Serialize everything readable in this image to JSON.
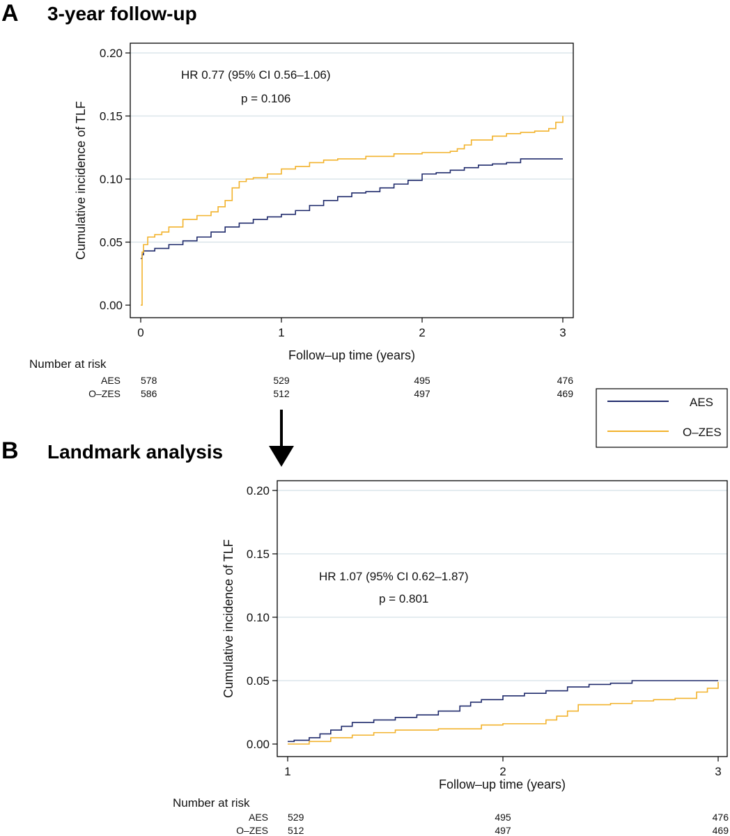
{
  "panel_a": {
    "letter": "A",
    "title": "3-year follow-up",
    "annotation_hr": "HR 0.77 (95% CI 0.56–1.06)",
    "annotation_p": "p = 0.106"
  },
  "panel_b": {
    "letter": "B",
    "title": "Landmark analysis",
    "annotation_hr": "HR 1.07 (95% CI 0.62–1.87)",
    "annotation_p": "p = 0.801"
  },
  "legend": {
    "items": [
      {
        "label": "AES",
        "color": "#1f2a6b"
      },
      {
        "label": "O–ZES",
        "color": "#f2b22b"
      }
    ]
  },
  "chart_data": [
    {
      "type": "line",
      "step": true,
      "xlabel": "Follow–up time (years)",
      "ylabel": "Cumulative incidence of TLF",
      "xlim": [
        0,
        3
      ],
      "ylim": [
        0,
        0.2
      ],
      "xticks": [
        "0",
        "1",
        "2",
        "3"
      ],
      "yticks": [
        "0.00",
        "0.05",
        "0.10",
        "0.15",
        "0.20"
      ],
      "grid": "horizontal",
      "series": [
        {
          "name": "AES",
          "color": "#1f2a6b",
          "x": [
            0,
            0.01,
            0.02,
            0.1,
            0.2,
            0.3,
            0.4,
            0.5,
            0.6,
            0.7,
            0.8,
            0.9,
            1.0,
            1.1,
            1.2,
            1.3,
            1.4,
            1.5,
            1.6,
            1.7,
            1.8,
            1.9,
            2.0,
            2.1,
            2.2,
            2.3,
            2.4,
            2.5,
            2.6,
            2.7,
            3.0
          ],
          "y": [
            0.037,
            0.04,
            0.043,
            0.045,
            0.048,
            0.051,
            0.054,
            0.058,
            0.062,
            0.065,
            0.068,
            0.07,
            0.072,
            0.075,
            0.079,
            0.083,
            0.086,
            0.089,
            0.09,
            0.093,
            0.096,
            0.099,
            0.104,
            0.105,
            0.107,
            0.109,
            0.111,
            0.112,
            0.113,
            0.116,
            0.116
          ]
        },
        {
          "name": "O–ZES",
          "color": "#f2b22b",
          "x": [
            0,
            0.01,
            0.02,
            0.05,
            0.1,
            0.15,
            0.2,
            0.3,
            0.4,
            0.5,
            0.55,
            0.6,
            0.65,
            0.7,
            0.75,
            0.8,
            0.9,
            1.0,
            1.1,
            1.2,
            1.3,
            1.4,
            1.6,
            1.8,
            2.0,
            2.2,
            2.25,
            2.3,
            2.35,
            2.5,
            2.6,
            2.7,
            2.8,
            2.9,
            2.95,
            3.0
          ],
          "y": [
            0.0,
            0.042,
            0.048,
            0.054,
            0.056,
            0.058,
            0.062,
            0.068,
            0.071,
            0.074,
            0.078,
            0.083,
            0.093,
            0.098,
            0.1,
            0.101,
            0.104,
            0.108,
            0.11,
            0.113,
            0.115,
            0.116,
            0.118,
            0.12,
            0.121,
            0.122,
            0.124,
            0.127,
            0.131,
            0.134,
            0.136,
            0.137,
            0.138,
            0.14,
            0.145,
            0.15
          ]
        }
      ],
      "risk_table": {
        "header": "Number at risk",
        "times": [
          0,
          1,
          2,
          3
        ],
        "rows": [
          {
            "label": "AES",
            "values": [
              "578",
              "529",
              "495",
              "476"
            ]
          },
          {
            "label": "O–ZES",
            "values": [
              "586",
              "512",
              "497",
              "469"
            ]
          }
        ]
      }
    },
    {
      "type": "line",
      "step": true,
      "xlabel": "Follow–up time (years)",
      "ylabel": "Cumulative incidence of TLF",
      "xlim": [
        1,
        3
      ],
      "ylim": [
        0,
        0.2
      ],
      "xticks": [
        "1",
        "2",
        "3"
      ],
      "yticks": [
        "0.00",
        "0.05",
        "0.10",
        "0.15",
        "0.20"
      ],
      "grid": "horizontal",
      "series": [
        {
          "name": "AES",
          "color": "#1f2a6b",
          "x": [
            1.0,
            1.03,
            1.1,
            1.15,
            1.2,
            1.25,
            1.3,
            1.4,
            1.5,
            1.6,
            1.7,
            1.8,
            1.85,
            1.9,
            2.0,
            2.1,
            2.2,
            2.3,
            2.4,
            2.5,
            2.6,
            3.0
          ],
          "y": [
            0.002,
            0.003,
            0.005,
            0.008,
            0.011,
            0.014,
            0.017,
            0.019,
            0.021,
            0.023,
            0.026,
            0.03,
            0.033,
            0.035,
            0.038,
            0.04,
            0.042,
            0.045,
            0.047,
            0.048,
            0.05,
            0.05
          ]
        },
        {
          "name": "O–ZES",
          "color": "#f2b22b",
          "x": [
            1.0,
            1.1,
            1.2,
            1.3,
            1.4,
            1.5,
            1.7,
            1.9,
            2.0,
            2.15,
            2.2,
            2.25,
            2.3,
            2.35,
            2.5,
            2.6,
            2.7,
            2.8,
            2.9,
            2.95,
            3.0
          ],
          "y": [
            0.0,
            0.002,
            0.005,
            0.007,
            0.009,
            0.011,
            0.012,
            0.015,
            0.016,
            0.016,
            0.019,
            0.022,
            0.026,
            0.031,
            0.032,
            0.034,
            0.035,
            0.036,
            0.041,
            0.044,
            0.049
          ]
        }
      ],
      "risk_table": {
        "header": "Number at risk",
        "times": [
          1,
          2,
          3
        ],
        "rows": [
          {
            "label": "AES",
            "values": [
              "529",
              "495",
              "476"
            ]
          },
          {
            "label": "O–ZES",
            "values": [
              "512",
              "497",
              "469"
            ]
          }
        ]
      }
    }
  ]
}
